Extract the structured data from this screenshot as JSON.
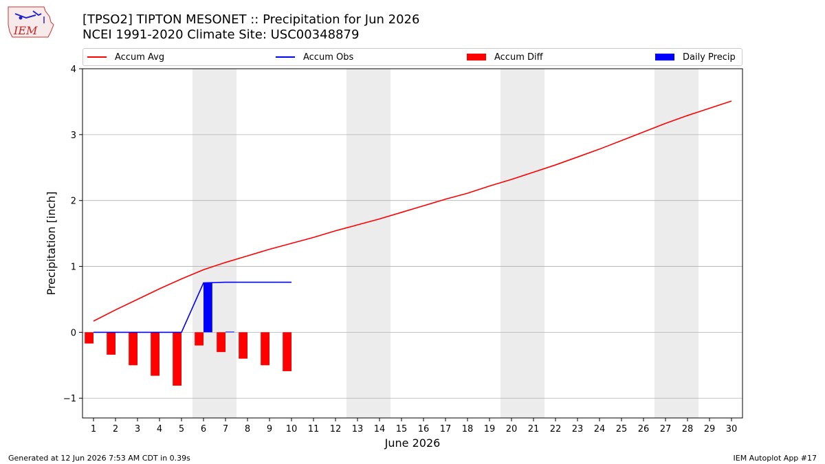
{
  "header": {
    "title_line1": "[TPSO2] TIPTON MESONET :: Precipitation for Jun 2026",
    "title_line2": "NCEI 1991-2020 Climate Site: USC00348879",
    "logo_text": "IEM"
  },
  "legend": [
    {
      "label": "Accum Avg",
      "kind": "line",
      "color": "#ff0000"
    },
    {
      "label": "Accum Obs",
      "kind": "line",
      "color": "#0000ff"
    },
    {
      "label": "Accum Diff",
      "kind": "box",
      "color": "#ff0000"
    },
    {
      "label": "Daily Precip",
      "kind": "box",
      "color": "#0000ff"
    }
  ],
  "footer": {
    "left": "Generated at 12 Jun 2026 7:53 AM CDT in 0.39s",
    "right": "IEM Autoplot App #17"
  },
  "chart_data": {
    "type": "line",
    "xlabel": "June 2026",
    "ylabel": "Precipitation [inch]",
    "xlim": [
      0.5,
      30.5
    ],
    "ylim": [
      -1.3,
      4.0
    ],
    "x_ticks": [
      1,
      2,
      3,
      4,
      5,
      6,
      7,
      8,
      9,
      10,
      11,
      12,
      13,
      14,
      15,
      16,
      17,
      18,
      19,
      20,
      21,
      22,
      23,
      24,
      25,
      26,
      27,
      28,
      29,
      30
    ],
    "y_ticks": [
      -1,
      0,
      1,
      2,
      3,
      4
    ],
    "y_tick_labels": [
      "−1",
      "0",
      "1",
      "2",
      "3",
      "4"
    ],
    "grid": "horizontal",
    "weekend_shading": [
      [
        5.5,
        7.5
      ],
      [
        12.5,
        14.5
      ],
      [
        19.5,
        21.5
      ],
      [
        26.5,
        28.5
      ]
    ],
    "series": [
      {
        "name": "Accum Avg",
        "type": "line",
        "color": "#ff0000",
        "x": [
          1,
          2,
          3,
          4,
          5,
          6,
          7,
          8,
          9,
          10,
          11,
          12,
          13,
          14,
          15,
          16,
          17,
          18,
          19,
          20,
          21,
          22,
          23,
          24,
          25,
          26,
          27,
          28,
          29,
          30
        ],
        "values": [
          0.17,
          0.34,
          0.5,
          0.66,
          0.81,
          0.95,
          1.06,
          1.16,
          1.26,
          1.35,
          1.44,
          1.54,
          1.63,
          1.72,
          1.82,
          1.92,
          2.02,
          2.11,
          2.22,
          2.32,
          2.43,
          2.54,
          2.66,
          2.78,
          2.91,
          3.04,
          3.17,
          3.29,
          3.4,
          3.51
        ]
      },
      {
        "name": "Accum Obs",
        "type": "line",
        "color": "#0000ff",
        "x": [
          1,
          2,
          3,
          4,
          5,
          6,
          7,
          8,
          9,
          10
        ],
        "values": [
          0,
          0,
          0,
          0,
          0,
          0.75,
          0.76,
          0.76,
          0.76,
          0.76
        ]
      },
      {
        "name": "Accum Diff",
        "type": "bar",
        "color": "#ff0000",
        "x": [
          1,
          2,
          3,
          4,
          5,
          6,
          7,
          8,
          9,
          10
        ],
        "values": [
          -0.17,
          -0.34,
          -0.5,
          -0.66,
          -0.81,
          -0.2,
          -0.3,
          -0.4,
          -0.5,
          -0.59
        ]
      },
      {
        "name": "Daily Precip",
        "type": "bar",
        "color": "#0000ff",
        "x": [
          6,
          7
        ],
        "values": [
          0.75,
          0.01
        ]
      }
    ]
  }
}
